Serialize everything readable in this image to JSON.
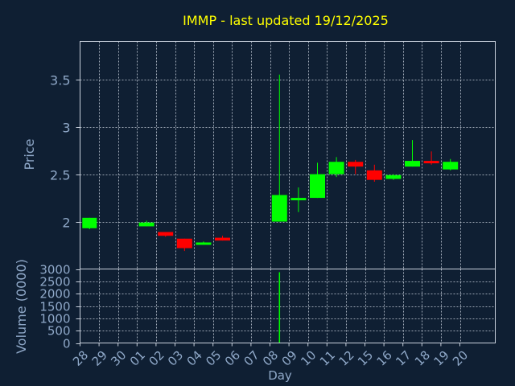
{
  "title": "IMMP - last updated 19/12/2025",
  "colors": {
    "background": "#0f1f33",
    "title": "#ffff00",
    "axis_text": "#8fa8c8",
    "grid": "#c8d0dc",
    "up": "#00ff00",
    "down": "#ff0000"
  },
  "chart_data": {
    "type": "candlestick",
    "title": "IMMP - last updated 19/12/2025",
    "xlabel": "Day",
    "price_panel": {
      "ylabel": "Price",
      "ylim": [
        1.5,
        3.9
      ],
      "yticks": [
        "2",
        "2.5",
        "3",
        "3.5"
      ],
      "grid": true
    },
    "volume_panel": {
      "ylabel": "Volume (0000)",
      "ylim": [
        0,
        3000
      ],
      "yticks": [
        "0",
        "500",
        "1000",
        "1500",
        "2000",
        "2500",
        "3000"
      ],
      "grid": true
    },
    "x_tick_labels": [
      "28",
      "29",
      "30",
      "01",
      "02",
      "03",
      "04",
      "05",
      "06",
      "07",
      "08",
      "09",
      "10",
      "11",
      "12",
      "15",
      "16",
      "17",
      "18",
      "19",
      "20"
    ],
    "candles": [
      {
        "day": "28",
        "open": 1.93,
        "high": 2.04,
        "low": 1.92,
        "close": 2.04,
        "volume": 0
      },
      {
        "day": "01",
        "open": 1.95,
        "high": 2.01,
        "low": 1.95,
        "close": 1.99,
        "volume": 0
      },
      {
        "day": "02",
        "open": 1.89,
        "high": 1.89,
        "low": 1.84,
        "close": 1.85,
        "volume": 0
      },
      {
        "day": "03",
        "open": 1.82,
        "high": 1.82,
        "low": 1.69,
        "close": 1.72,
        "volume": 0
      },
      {
        "day": "04",
        "open": 1.76,
        "high": 1.79,
        "low": 1.76,
        "close": 1.78,
        "volume": 0
      },
      {
        "day": "05",
        "open": 1.83,
        "high": 1.85,
        "low": 1.8,
        "close": 1.8,
        "volume": 0
      },
      {
        "day": "08",
        "open": 2.0,
        "high": 3.55,
        "low": 2.0,
        "close": 2.28,
        "volume": 2870
      },
      {
        "day": "09",
        "open": 2.23,
        "high": 2.36,
        "low": 2.1,
        "close": 2.25,
        "volume": 0
      },
      {
        "day": "10",
        "open": 2.25,
        "high": 2.62,
        "low": 2.25,
        "close": 2.5,
        "volume": 0
      },
      {
        "day": "11",
        "open": 2.5,
        "high": 2.68,
        "low": 2.47,
        "close": 2.63,
        "volume": 0
      },
      {
        "day": "12",
        "open": 2.63,
        "high": 2.65,
        "low": 2.5,
        "close": 2.58,
        "volume": 0
      },
      {
        "day": "15",
        "open": 2.54,
        "high": 2.6,
        "low": 2.42,
        "close": 2.44,
        "volume": 0
      },
      {
        "day": "16",
        "open": 2.45,
        "high": 2.5,
        "low": 2.44,
        "close": 2.49,
        "volume": 0
      },
      {
        "day": "17",
        "open": 2.58,
        "high": 2.86,
        "low": 2.58,
        "close": 2.64,
        "volume": 0
      },
      {
        "day": "18",
        "open": 2.64,
        "high": 2.74,
        "low": 2.6,
        "close": 2.62,
        "volume": 0
      },
      {
        "day": "19",
        "open": 2.55,
        "high": 2.66,
        "low": 2.54,
        "close": 2.63,
        "volume": 0
      }
    ]
  }
}
